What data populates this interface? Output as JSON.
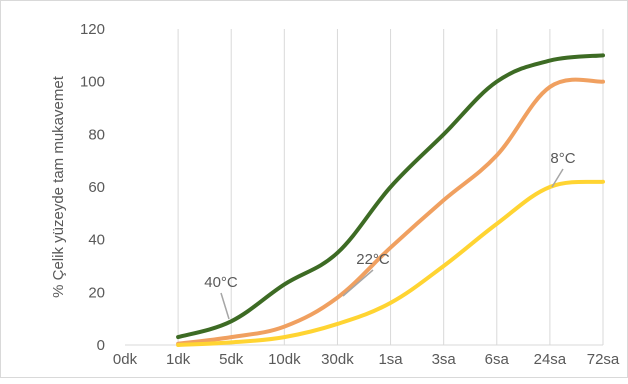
{
  "chart_data": {
    "type": "line",
    "title": "",
    "ylabel": "% Çelik yüzeyde tam mukavemet",
    "xlabel": "",
    "categories": [
      "0dk",
      "1dk",
      "5dk",
      "10dk",
      "30dk",
      "1sa",
      "3sa",
      "6sa",
      "24sa",
      "72sa"
    ],
    "ylim": [
      0,
      120
    ],
    "yticks": [
      0,
      20,
      40,
      60,
      80,
      100,
      120
    ],
    "grid": "vertical",
    "series": [
      {
        "key": "40",
        "color": "#3d6b24",
        "values": [
          null,
          3,
          9,
          23,
          35,
          60,
          80,
          100,
          108,
          110
        ]
      },
      {
        "key": "22",
        "color": "#f0a060",
        "values": [
          null,
          0.5,
          3,
          7,
          18,
          37,
          55,
          72,
          98,
          100
        ]
      },
      {
        "key": "8",
        "color": "#ffd432",
        "values": [
          null,
          0,
          1,
          3,
          8,
          16,
          30,
          46,
          60,
          62
        ]
      }
    ],
    "annotations": [
      {
        "text": "40°C",
        "series": "40",
        "at": 2
      },
      {
        "text": "22°C",
        "series": "22",
        "at": 4.3
      },
      {
        "text": "8°C",
        "series": "8",
        "at": 8
      }
    ]
  }
}
